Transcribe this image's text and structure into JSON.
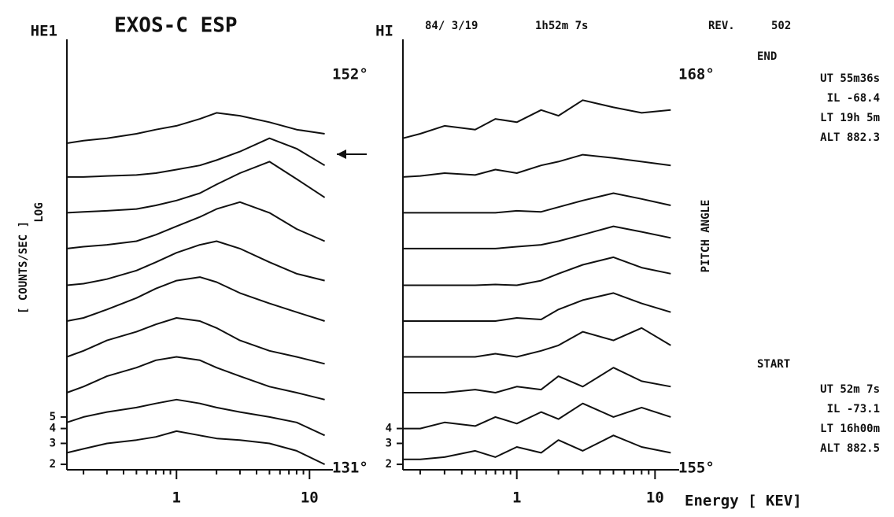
{
  "labels": {
    "title": "EXOS-C ESP",
    "date": "84/ 3/19",
    "time": "1h52m 7s",
    "rev_label": "REV.",
    "rev": "502",
    "y_label": "[ COUNTS/SEC ]",
    "y_scale": "LOG",
    "pitch_label": "PITCH ANGLE",
    "x_label": "Energy [ KEV]",
    "end": {
      "title": "END",
      "lines": [
        "UT 55m36s",
        "IL -68.4",
        "LT 19h 5m",
        "ALT 882.3"
      ]
    },
    "start": {
      "title": "START",
      "lines": [
        "UT 52m 7s",
        "IL -73.1",
        "LT 16h00m",
        "ALT 882.5"
      ]
    }
  },
  "chart_data": [
    {
      "type": "line",
      "panel_label": "HE1",
      "angle_top": "152°",
      "angle_bottom": "131°",
      "xlim": [
        0.15,
        14
      ],
      "ylim": [
        1.8,
        5500
      ],
      "log_x": true,
      "log_y": true,
      "color": "#111111",
      "xticks": [
        1,
        10
      ],
      "xminor": [
        0.2,
        0.3,
        0.4,
        0.5,
        0.6,
        0.7,
        0.8,
        0.9,
        2,
        3,
        4,
        5,
        6,
        7,
        8,
        9
      ],
      "yticks": [
        2,
        3,
        4,
        5
      ],
      "x": [
        0.15,
        0.2,
        0.3,
        0.5,
        0.7,
        1,
        1.5,
        2,
        3,
        5,
        8,
        13
      ],
      "series": [
        {
          "values": [
            2.5,
            2.7,
            3,
            3.2,
            3.4,
            3.8,
            3.5,
            3.3,
            3.2,
            3,
            2.6,
            2
          ]
        },
        {
          "values": [
            4.5,
            5,
            5.5,
            6,
            6.5,
            7,
            6.5,
            6,
            5.5,
            5,
            4.5,
            3.5
          ]
        },
        {
          "values": [
            8,
            9,
            11,
            13,
            15,
            16,
            15,
            13,
            11,
            9,
            8,
            7
          ]
        },
        {
          "values": [
            16,
            18,
            22,
            26,
            30,
            34,
            32,
            28,
            22,
            18,
            16,
            14
          ]
        },
        {
          "values": [
            32,
            34,
            40,
            50,
            60,
            70,
            75,
            68,
            55,
            45,
            38,
            32
          ]
        },
        {
          "values": [
            64,
            66,
            72,
            85,
            100,
            120,
            140,
            150,
            130,
            100,
            80,
            70
          ]
        },
        {
          "values": [
            130,
            135,
            140,
            150,
            170,
            200,
            240,
            280,
            320,
            260,
            190,
            150
          ]
        },
        {
          "values": [
            260,
            265,
            270,
            280,
            300,
            330,
            380,
            450,
            560,
            700,
            500,
            350
          ]
        },
        {
          "values": [
            520,
            520,
            530,
            540,
            560,
            600,
            650,
            720,
            850,
            1100,
            900,
            650
          ]
        },
        {
          "values": [
            1000,
            1050,
            1100,
            1200,
            1300,
            1400,
            1600,
            1800,
            1700,
            1500,
            1300,
            1200
          ]
        }
      ]
    },
    {
      "type": "line",
      "panel_label": "HI",
      "angle_top": "168°",
      "angle_bottom": "155°",
      "xlim": [
        0.15,
        14
      ],
      "ylim": [
        1.8,
        5500
      ],
      "log_x": true,
      "log_y": true,
      "color": "#111111",
      "xticks": [
        1,
        10
      ],
      "xminor": [
        0.2,
        0.3,
        0.4,
        0.5,
        0.6,
        0.7,
        0.8,
        0.9,
        2,
        3,
        4,
        5,
        6,
        7,
        8,
        9
      ],
      "yticks": [
        2,
        3,
        4
      ],
      "x": [
        0.15,
        0.2,
        0.3,
        0.5,
        0.7,
        1,
        1.5,
        2,
        3,
        5,
        8,
        13
      ],
      "series": [
        {
          "values": [
            2.2,
            2.2,
            2.3,
            2.6,
            2.3,
            2.8,
            2.5,
            3.2,
            2.6,
            3.5,
            2.8,
            2.5
          ]
        },
        {
          "values": [
            4,
            4,
            4.5,
            4.2,
            5,
            4.4,
            5.5,
            4.8,
            6.5,
            5,
            6,
            5
          ]
        },
        {
          "values": [
            8,
            8,
            8,
            8.5,
            8,
            9,
            8.5,
            11,
            9,
            13,
            10,
            9
          ]
        },
        {
          "values": [
            16,
            16,
            16,
            16,
            17,
            16,
            18,
            20,
            26,
            22,
            28,
            20
          ]
        },
        {
          "values": [
            32,
            32,
            32,
            32,
            32,
            34,
            33,
            40,
            48,
            55,
            45,
            38
          ]
        },
        {
          "values": [
            64,
            64,
            64,
            64,
            65,
            64,
            70,
            80,
            95,
            110,
            90,
            80
          ]
        },
        {
          "values": [
            130,
            130,
            130,
            130,
            130,
            135,
            140,
            150,
            170,
            200,
            180,
            160
          ]
        },
        {
          "values": [
            260,
            260,
            260,
            260,
            260,
            270,
            265,
            290,
            330,
            380,
            340,
            300
          ]
        },
        {
          "values": [
            520,
            530,
            560,
            540,
            600,
            560,
            650,
            700,
            800,
            750,
            700,
            650
          ]
        },
        {
          "values": [
            1100,
            1200,
            1400,
            1300,
            1600,
            1500,
            1900,
            1700,
            2300,
            2000,
            1800,
            1900
          ]
        }
      ]
    }
  ]
}
